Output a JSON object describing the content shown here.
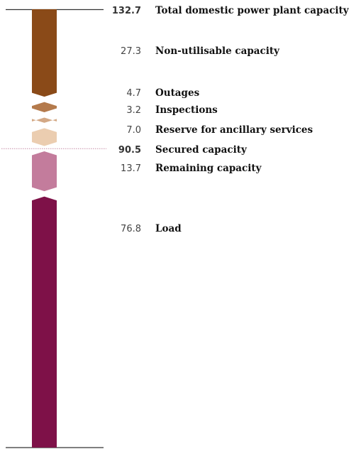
{
  "chart_data": {
    "type": "stacked-bar",
    "title": "",
    "xlabel": "",
    "ylabel": "",
    "total": {
      "value": 132.7,
      "value_label": "132.7",
      "label": "Total domestic power plant capacity"
    },
    "segments": [
      {
        "name": "Non-utilisable capacity",
        "value": 27.3,
        "value_label": "27.3",
        "color": "#8A4A18"
      },
      {
        "name": "Outages",
        "value": 4.7,
        "value_label": "4.7",
        "color": "#B47A4C"
      },
      {
        "name": "Inspections",
        "value": 3.2,
        "value_label": "3.2",
        "color": "#D3A885"
      },
      {
        "name": "Reserve for ancillary services",
        "value": 7.0,
        "value_label": "7.0",
        "color": "#EBCDB0"
      },
      {
        "name": "Remaining capacity",
        "value": 13.7,
        "value_label": "13.7",
        "color": "#C37C9C"
      },
      {
        "name": "Load",
        "value": 76.8,
        "value_label": "76.8",
        "color": "#7E1148"
      }
    ],
    "marker": {
      "value": 90.5,
      "value_label": "90.5",
      "label": "Secured capacity",
      "color": "#C58CA6"
    }
  }
}
